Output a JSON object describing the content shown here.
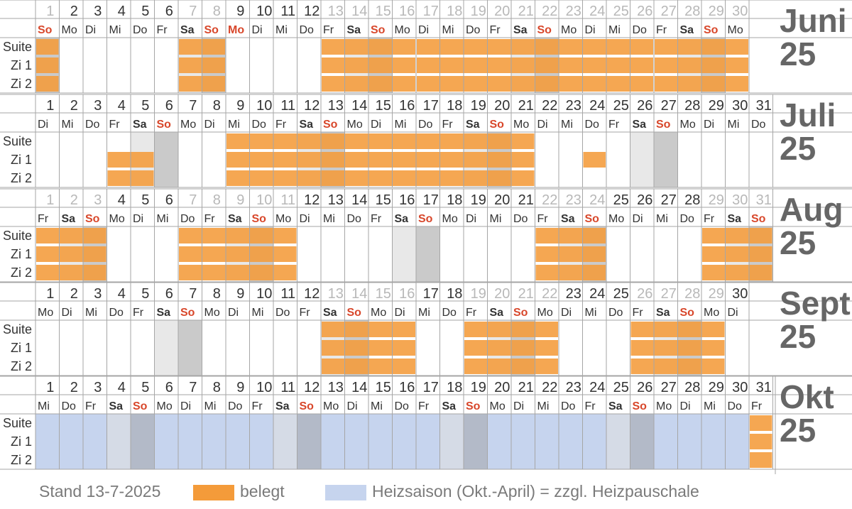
{
  "colors": {
    "occupied": "#f49b3a",
    "heating": "#c6d4ee",
    "weekend_light": "#e8e8e8",
    "weekend_dark": "#cacaca",
    "sunday_text": "#d8472b",
    "grid": "#a6a6a6",
    "month_label": "#666666",
    "day_faded": "#b8b8b8",
    "text": "#333333"
  },
  "room_labels": [
    "Suite",
    "Zi 1",
    "Zi 2"
  ],
  "months": [
    {
      "name": "Juni",
      "year": "25",
      "days": 30,
      "weekdays": [
        "So",
        "Mo",
        "Di",
        "Mi",
        "Do",
        "Fr",
        "Sa",
        "So",
        "Mo",
        "Di",
        "Mi",
        "Do",
        "Fr",
        "Sa",
        "So",
        "Mo",
        "Di",
        "Mi",
        "Do",
        "Fr",
        "Sa",
        "So",
        "Mo",
        "Di",
        "Mi",
        "Do",
        "Fr",
        "Sa",
        "So",
        "Mo"
      ],
      "holidays": [
        9
      ],
      "occupied": [
        [
          1,
          1
        ],
        [
          7,
          8
        ],
        [
          13,
          16
        ],
        [
          17,
          26
        ],
        [
          27,
          30
        ]
      ],
      "heating": []
    },
    {
      "name": "Juli",
      "year": "25",
      "days": 31,
      "weekdays": [
        "Di",
        "Mi",
        "Do",
        "Fr",
        "Sa",
        "So",
        "Mo",
        "Di",
        "Mi",
        "Do",
        "Fr",
        "Sa",
        "So",
        "Mo",
        "Di",
        "Mi",
        "Do",
        "Fr",
        "Sa",
        "So",
        "Mo",
        "Di",
        "Mi",
        "Do",
        "Fr",
        "Sa",
        "So",
        "Mo",
        "Di",
        "Mi",
        "Do"
      ],
      "holidays": [],
      "occupied_rooms": [
        [
          [
            9,
            21
          ]
        ],
        [
          [
            4,
            5
          ],
          [
            9,
            21
          ],
          [
            24,
            24
          ]
        ],
        [
          [
            4,
            5
          ],
          [
            9,
            21
          ]
        ]
      ],
      "heating": []
    },
    {
      "name": "Aug",
      "year": "25",
      "days": 31,
      "weekdays": [
        "Fr",
        "Sa",
        "So",
        "Mo",
        "Di",
        "Mi",
        "Do",
        "Fr",
        "Sa",
        "So",
        "Mo",
        "Di",
        "Mi",
        "Do",
        "Fr",
        "Sa",
        "So",
        "Mo",
        "Di",
        "Mi",
        "Do",
        "Fr",
        "Sa",
        "So",
        "Mo",
        "Di",
        "Mi",
        "Do",
        "Fr",
        "Sa",
        "So"
      ],
      "holidays": [],
      "occupied": [
        [
          1,
          3
        ],
        [
          7,
          11
        ],
        [
          22,
          24
        ],
        [
          29,
          31
        ]
      ],
      "heating": []
    },
    {
      "name": "Sept",
      "year": "25",
      "days": 30,
      "weekdays": [
        "Mo",
        "Di",
        "Mi",
        "Do",
        "Fr",
        "Sa",
        "So",
        "Mo",
        "Di",
        "Mi",
        "Do",
        "Fr",
        "Sa",
        "So",
        "Mo",
        "Di",
        "Mi",
        "Do",
        "Fr",
        "Sa",
        "So",
        "Mo",
        "Di",
        "Mi",
        "Do",
        "Fr",
        "Sa",
        "So",
        "Mo",
        "Di"
      ],
      "holidays": [],
      "occupied": [
        [
          13,
          16
        ],
        [
          19,
          22
        ],
        [
          26,
          29
        ]
      ],
      "heating": []
    },
    {
      "name": "Okt",
      "year": "25",
      "days": 31,
      "weekdays": [
        "Mi",
        "Do",
        "Fr",
        "Sa",
        "So",
        "Mo",
        "Di",
        "Mi",
        "Do",
        "Fr",
        "Sa",
        "So",
        "Mo",
        "Di",
        "Mi",
        "Do",
        "Fr",
        "Sa",
        "So",
        "Mo",
        "Di",
        "Mi",
        "Do",
        "Fr",
        "Sa",
        "So",
        "Mo",
        "Di",
        "Mi",
        "Do",
        "Fr"
      ],
      "holidays": [],
      "occupied": [
        [
          31,
          31
        ]
      ],
      "heating": [
        [
          1,
          30
        ]
      ]
    }
  ],
  "legend": {
    "stand": "Stand 13-7-2025",
    "occupied_label": "belegt",
    "heating_label": "Heizsaison (Okt.-April) = zzgl. Heizpauschale"
  }
}
